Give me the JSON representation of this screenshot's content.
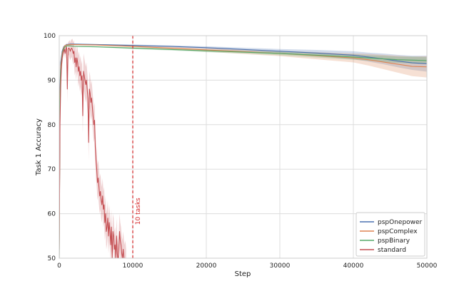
{
  "chart_data": {
    "type": "line",
    "xlabel": "Step",
    "ylabel": "Task 1 Accuracy",
    "xlim": [
      0,
      50000
    ],
    "ylim": [
      50,
      100
    ],
    "xticks": [
      0,
      10000,
      20000,
      30000,
      40000,
      50000
    ],
    "yticks": [
      50,
      60,
      70,
      80,
      90,
      100
    ],
    "grid": true,
    "legend_position": "bottom-right",
    "annotation": {
      "text": "10 tasks",
      "x": 10000,
      "style": "dashed vertical line",
      "color": "#d62728"
    },
    "series": [
      {
        "name": "pspOnepower",
        "color": "#4c72b0",
        "band_color": "#4c72b0",
        "x": [
          0,
          100,
          200,
          400,
          600,
          800,
          1000,
          1500,
          2000,
          5000,
          10000,
          15000,
          20000,
          25000,
          30000,
          35000,
          40000,
          42000,
          44000,
          46000,
          48000,
          50000
        ],
        "y": [
          50,
          88,
          94,
          96.5,
          97.5,
          97.8,
          98.0,
          98.1,
          98.1,
          98.0,
          97.8,
          97.6,
          97.3,
          96.9,
          96.5,
          96.1,
          95.6,
          95.2,
          94.8,
          94.3,
          93.9,
          93.7
        ],
        "band": [
          0,
          0,
          0,
          0,
          0,
          0,
          0,
          0.1,
          0.1,
          0.1,
          0.2,
          0.2,
          0.3,
          0.4,
          0.5,
          0.7,
          0.9,
          1.0,
          1.2,
          1.4,
          1.6,
          1.8
        ]
      },
      {
        "name": "pspComplex",
        "color": "#dd8452",
        "band_color": "#dd8452",
        "x": [
          0,
          100,
          200,
          400,
          600,
          800,
          1000,
          1500,
          2000,
          5000,
          10000,
          15000,
          20000,
          25000,
          30000,
          35000,
          40000,
          42000,
          44000,
          46000,
          48000,
          50000
        ],
        "y": [
          50,
          86,
          93,
          96,
          97.3,
          97.8,
          97.9,
          98.0,
          98.0,
          97.9,
          97.6,
          97.2,
          96.8,
          96.4,
          96.0,
          95.5,
          95.0,
          94.6,
          94.1,
          93.6,
          93.1,
          93.0
        ],
        "band": [
          0,
          0,
          0,
          0,
          0,
          0,
          0,
          0.1,
          0.1,
          0.1,
          0.2,
          0.3,
          0.4,
          0.5,
          0.6,
          0.8,
          1.0,
          1.3,
          1.6,
          1.9,
          2.2,
          2.4
        ]
      },
      {
        "name": "pspBinary",
        "color": "#55a868",
        "band_color": "#55a868",
        "x": [
          0,
          100,
          200,
          400,
          600,
          800,
          1000,
          1500,
          2000,
          5000,
          10000,
          15000,
          20000,
          25000,
          30000,
          35000,
          40000,
          42000,
          44000,
          46000,
          48000,
          50000
        ],
        "y": [
          50,
          85,
          92,
          95.5,
          97,
          97.5,
          97.7,
          97.7,
          97.6,
          97.5,
          97.2,
          96.9,
          96.6,
          96.3,
          96.0,
          95.6,
          95.2,
          95.0,
          94.8,
          94.6,
          94.5,
          94.4
        ],
        "band": [
          0,
          0,
          0,
          0,
          0,
          0,
          0,
          0.1,
          0.1,
          0.1,
          0.2,
          0.2,
          0.3,
          0.3,
          0.4,
          0.5,
          0.6,
          0.6,
          0.7,
          0.7,
          0.8,
          0.8
        ]
      },
      {
        "name": "standard",
        "color": "#c44e52",
        "band_color": "#c44e52",
        "x": [
          0,
          100,
          200,
          300,
          400,
          500,
          600,
          700,
          800,
          900,
          1000,
          1100,
          1200,
          1300,
          1400,
          1500,
          1600,
          1700,
          1800,
          1900,
          2000,
          2100,
          2200,
          2300,
          2400,
          2500,
          2600,
          2700,
          2800,
          2900,
          3000,
          3100,
          3200,
          3300,
          3400,
          3500,
          3600,
          3700,
          3800,
          3900,
          4000,
          4100,
          4200,
          4300,
          4400,
          4500,
          4600,
          4700,
          4800,
          4900,
          5000,
          5100,
          5200,
          5300,
          5400,
          5500,
          5600,
          5700,
          5800,
          5900,
          6000,
          6100,
          6200,
          6300,
          6400,
          6500,
          6600,
          6700,
          6800,
          6900,
          7000,
          7100,
          7200,
          7300,
          7400,
          7500,
          7600,
          7700,
          7800,
          7900,
          8000,
          8100,
          8200,
          8300,
          8400,
          8500,
          8600,
          8700,
          8800,
          8900,
          9000,
          9100
        ],
        "y": [
          52,
          80,
          89,
          93,
          95,
          96,
          96.5,
          97,
          96,
          97,
          97.5,
          88,
          97,
          97.2,
          97,
          96.5,
          97,
          97.2,
          96.8,
          96,
          96.5,
          94,
          95,
          93,
          95,
          94,
          92,
          93,
          91,
          92,
          90,
          91,
          82,
          92,
          91,
          90,
          89,
          90,
          88,
          86,
          76,
          88,
          87,
          85,
          86,
          84,
          82,
          80,
          81,
          75,
          72,
          70,
          67,
          68,
          66,
          64,
          65,
          63,
          62,
          64,
          61,
          62,
          58,
          60,
          56,
          57,
          59,
          55,
          58,
          56,
          53,
          57,
          50,
          56,
          55,
          52,
          53,
          50,
          55,
          51,
          49,
          52,
          56,
          54,
          53,
          51,
          50,
          52,
          50,
          49,
          50,
          48
        ],
        "band": [
          1,
          4,
          3,
          2,
          1.5,
          1.2,
          1,
          1,
          1.2,
          1,
          1,
          3,
          1.5,
          1.5,
          2,
          2,
          2,
          2,
          2.5,
          2.5,
          2.5,
          3,
          3,
          3,
          3,
          3,
          3.5,
          3.5,
          3.5,
          3.5,
          3.5,
          3.5,
          4,
          4,
          4,
          4,
          4,
          4,
          4,
          4,
          4,
          4,
          4,
          4,
          4,
          4,
          4,
          4,
          4,
          4,
          4,
          4,
          4,
          4,
          4,
          4,
          4,
          4,
          4,
          4,
          4,
          4,
          4,
          4,
          4,
          4,
          4,
          4,
          4,
          4,
          4,
          4,
          4,
          4,
          4,
          4,
          4,
          4,
          4,
          4,
          4,
          4,
          4,
          4,
          4,
          4,
          4,
          4,
          4,
          4,
          4,
          4
        ]
      }
    ]
  }
}
